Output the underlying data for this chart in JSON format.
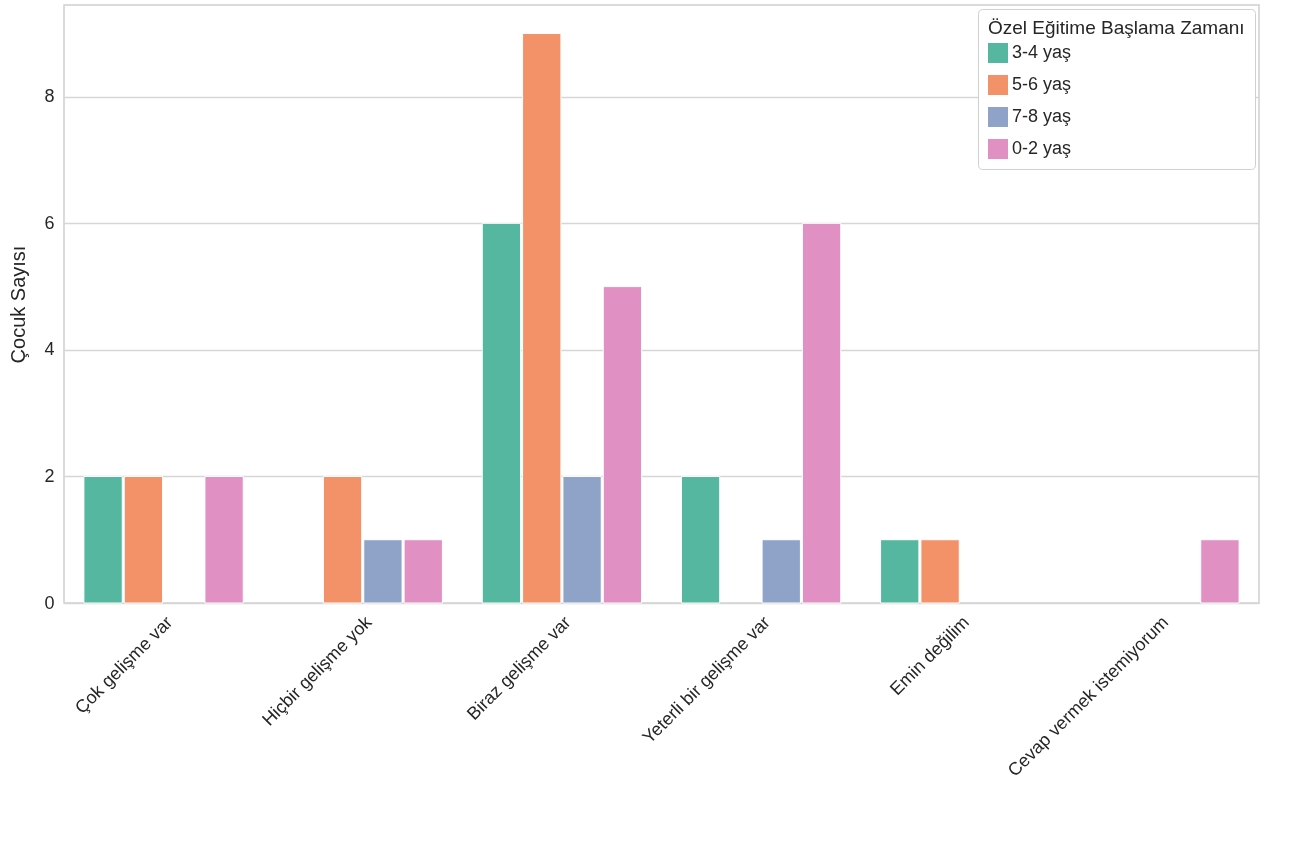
{
  "chart_data": {
    "type": "bar",
    "ylabel": "Çocuk Sayısı",
    "legend_title": "Özel Eğitime Başlama Zamanı",
    "categories": [
      "Çok gelişme var",
      "Hiçbir gelişme yok",
      "Biraz gelişme var",
      "Yeterli bir gelişme var",
      "Emin değilim",
      "Cevap vermek istemiyorum"
    ],
    "series": [
      {
        "name": "3-4 yaş",
        "color": "#55b79f",
        "values": [
          2,
          null,
          6,
          2,
          1,
          null
        ]
      },
      {
        "name": "5-6 yaş",
        "color": "#f39268",
        "values": [
          2,
          2,
          9,
          null,
          1,
          null
        ]
      },
      {
        "name": "7-8 yaş",
        "color": "#8fa3c9",
        "values": [
          null,
          1,
          2,
          1,
          null,
          null
        ]
      },
      {
        "name": "0-2 yaş",
        "color": "#e090c2",
        "values": [
          2,
          1,
          5,
          6,
          null,
          1
        ]
      }
    ],
    "ylim": [
      0,
      9.45
    ],
    "yticks": [
      0,
      2,
      4,
      6,
      8
    ],
    "grid": "y",
    "legend": "top right"
  }
}
